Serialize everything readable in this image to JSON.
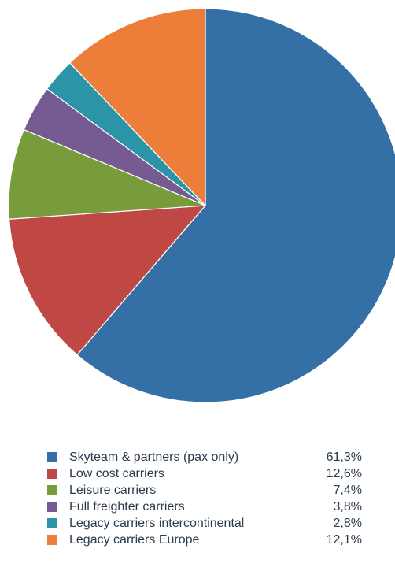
{
  "chart_data": {
    "type": "pie",
    "title": "",
    "slices": [
      {
        "label": "Skyteam & partners (pax only)",
        "value": 61.3,
        "display": "61,3%",
        "color": "#3470a5"
      },
      {
        "label": "Low cost carriers",
        "value": 12.6,
        "display": "12,6%",
        "color": "#bf4844"
      },
      {
        "label": "Leisure carriers",
        "value": 7.4,
        "display": "7,4%",
        "color": "#789b3c"
      },
      {
        "label": "Full freighter carriers",
        "value": 3.8,
        "display": "3,8%",
        "color": "#765b92"
      },
      {
        "label": "Legacy carriers intercontinental",
        "value": 2.8,
        "display": "2,8%",
        "color": "#2b94a7"
      },
      {
        "label": "Legacy carriers Europe",
        "value": 12.1,
        "display": "12,1%",
        "color": "#ec7e3a"
      }
    ],
    "start_angle": "12 o'clock",
    "direction": "clockwise",
    "legend_position": "bottom"
  }
}
